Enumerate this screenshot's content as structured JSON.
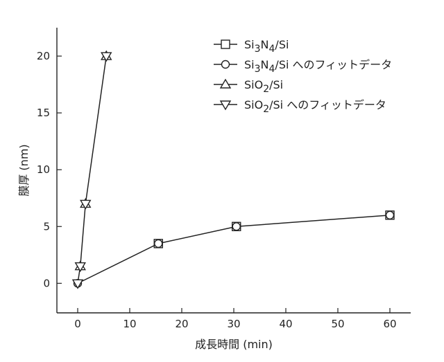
{
  "chart_data": {
    "type": "line",
    "title": "",
    "xlabel": "成長時間 (min)",
    "ylabel": "膜厚 (nm)",
    "xlim": [
      -4,
      64
    ],
    "ylim": [
      -2.6,
      22.5
    ],
    "xticks": [
      0,
      10,
      20,
      30,
      40,
      50,
      60
    ],
    "yticks": [
      0,
      5,
      10,
      15,
      20
    ],
    "grid": false,
    "legend_position": "top-right",
    "series": [
      {
        "marker": "square",
        "legend_parts": [
          {
            "t": "Si"
          },
          {
            "t": "3",
            "sub": true
          },
          {
            "t": "N"
          },
          {
            "t": "4",
            "sub": true
          },
          {
            "t": "/Si"
          }
        ],
        "x": [
          15.5,
          30.5,
          60.0
        ],
        "y": [
          3.5,
          5.0,
          6.0
        ],
        "line": false
      },
      {
        "marker": "circle",
        "legend_parts": [
          {
            "t": "Si"
          },
          {
            "t": "3",
            "sub": true
          },
          {
            "t": "N"
          },
          {
            "t": "4",
            "sub": true
          },
          {
            "t": "/Si へのフィットデータ"
          }
        ],
        "x": [
          0.0,
          15.5,
          30.5,
          60.0
        ],
        "y": [
          0.0,
          3.5,
          5.0,
          6.0
        ],
        "line": true
      },
      {
        "marker": "triangle-up",
        "legend_parts": [
          {
            "t": "SiO"
          },
          {
            "t": "2",
            "sub": true
          },
          {
            "t": "/Si"
          }
        ],
        "x": [
          0.5,
          1.5,
          5.5
        ],
        "y": [
          1.5,
          7.0,
          20.0
        ],
        "line": false
      },
      {
        "marker": "triangle-down",
        "legend_parts": [
          {
            "t": "SiO"
          },
          {
            "t": "2",
            "sub": true
          },
          {
            "t": "/Si へのフィットデータ"
          }
        ],
        "x": [
          0.0,
          0.5,
          1.5,
          5.5
        ],
        "y": [
          0.0,
          1.5,
          7.0,
          20.0
        ],
        "line": true
      }
    ]
  }
}
